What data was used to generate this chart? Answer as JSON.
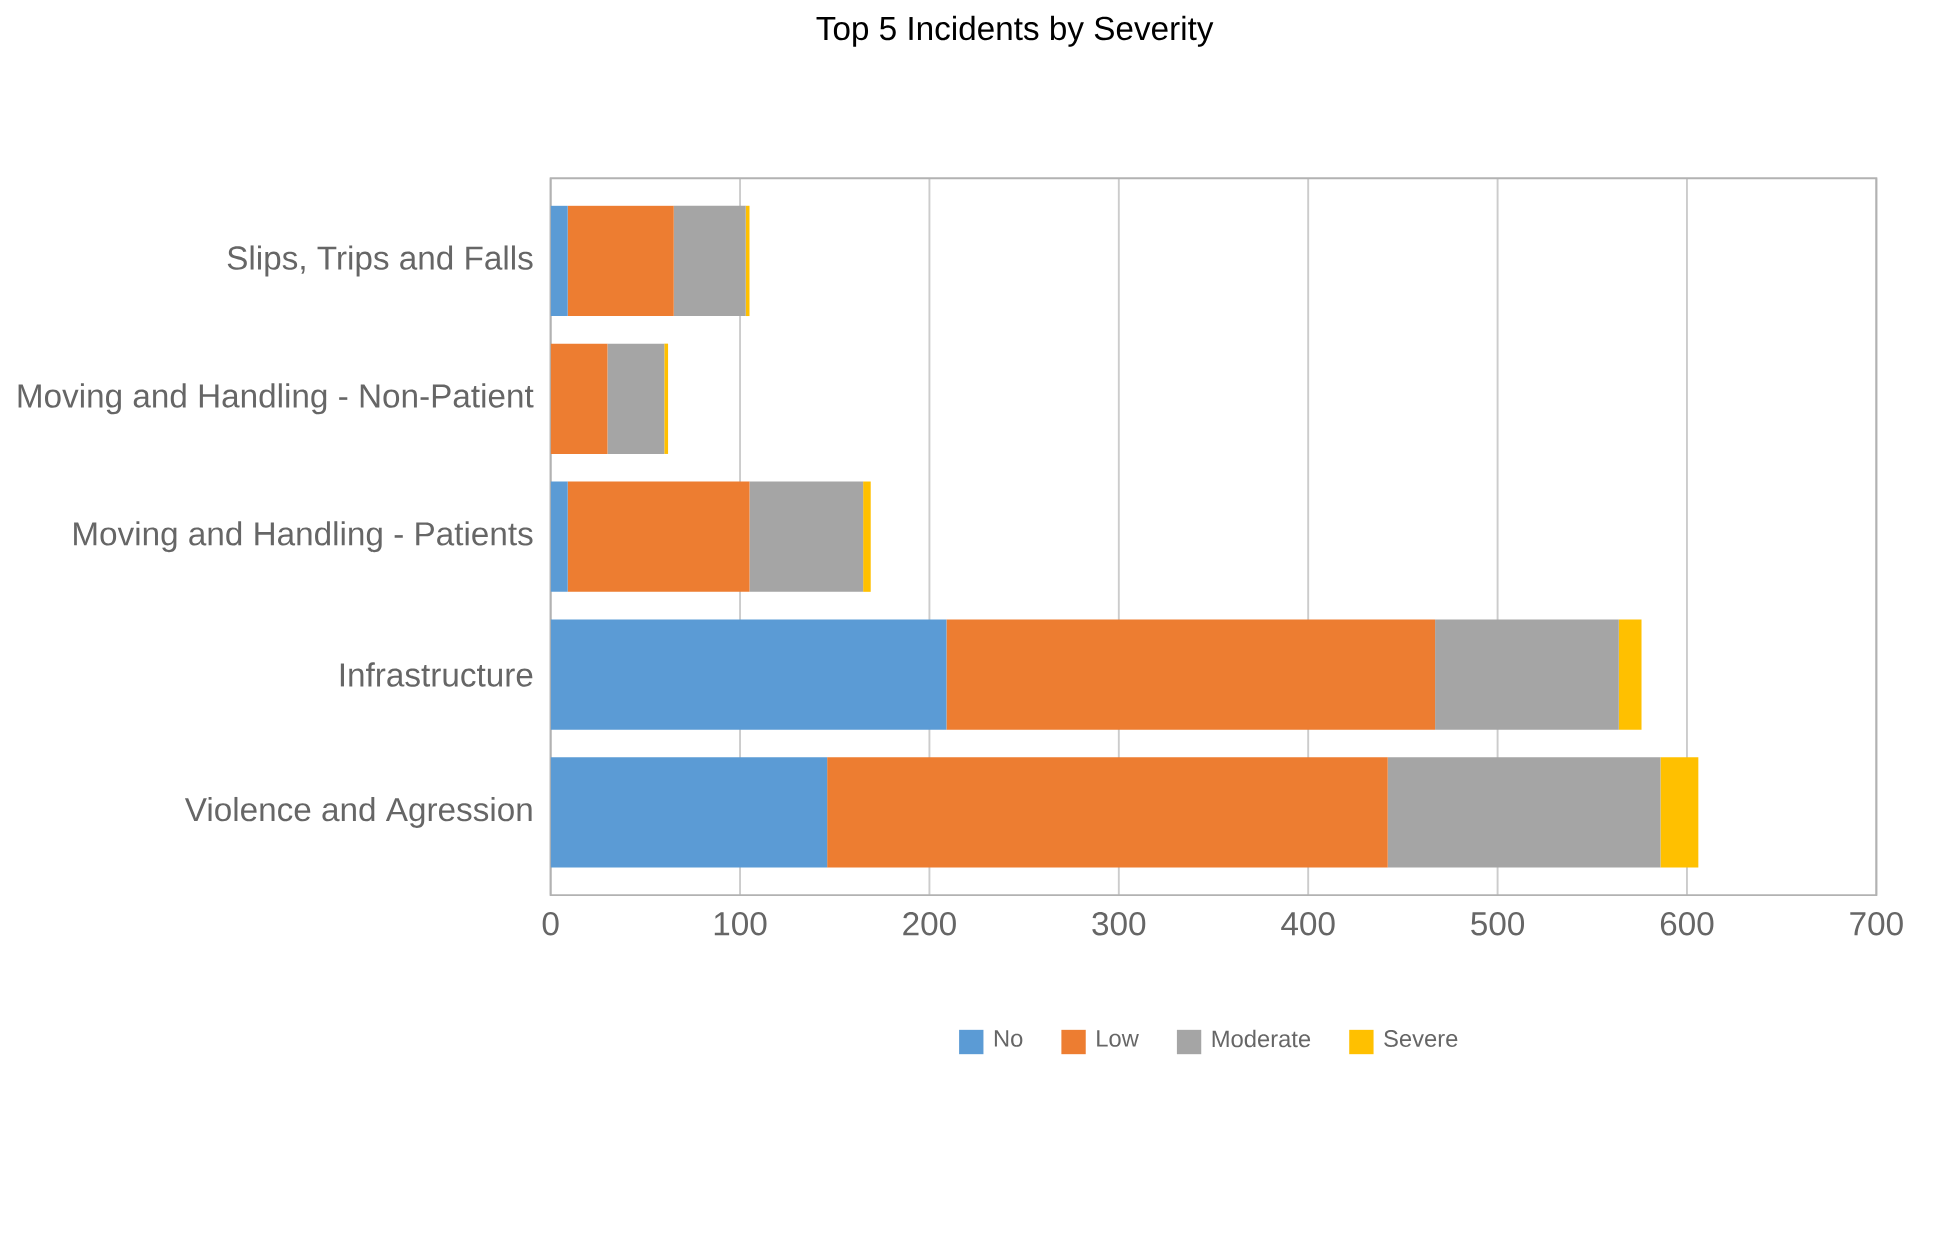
{
  "chart_data": {
    "type": "bar",
    "orientation": "horizontal",
    "stacked": true,
    "title": "Top 5 Incidents by Severity",
    "categories": [
      "Slips, Trips and Falls",
      "Moving and Handling - Non-Patient",
      "Moving and Handling - Patients",
      "Infrastructure",
      "Violence and Agression"
    ],
    "series": [
      {
        "name": "No",
        "color": "#5b9bd5",
        "values": [
          9,
          0,
          9,
          209,
          146
        ]
      },
      {
        "name": "Low",
        "color": "#ed7d31",
        "values": [
          56,
          30,
          96,
          258,
          296
        ]
      },
      {
        "name": "Moderate",
        "color": "#a5a5a5",
        "values": [
          38,
          30,
          60,
          97,
          144
        ]
      },
      {
        "name": "Severe",
        "color": "#ffc000",
        "values": [
          2,
          2,
          4,
          12,
          20
        ]
      }
    ],
    "xlim": [
      0,
      700
    ],
    "xticks": [
      0,
      100,
      200,
      300,
      400,
      500,
      600,
      700
    ],
    "grid": "x",
    "legend": "bottom"
  }
}
